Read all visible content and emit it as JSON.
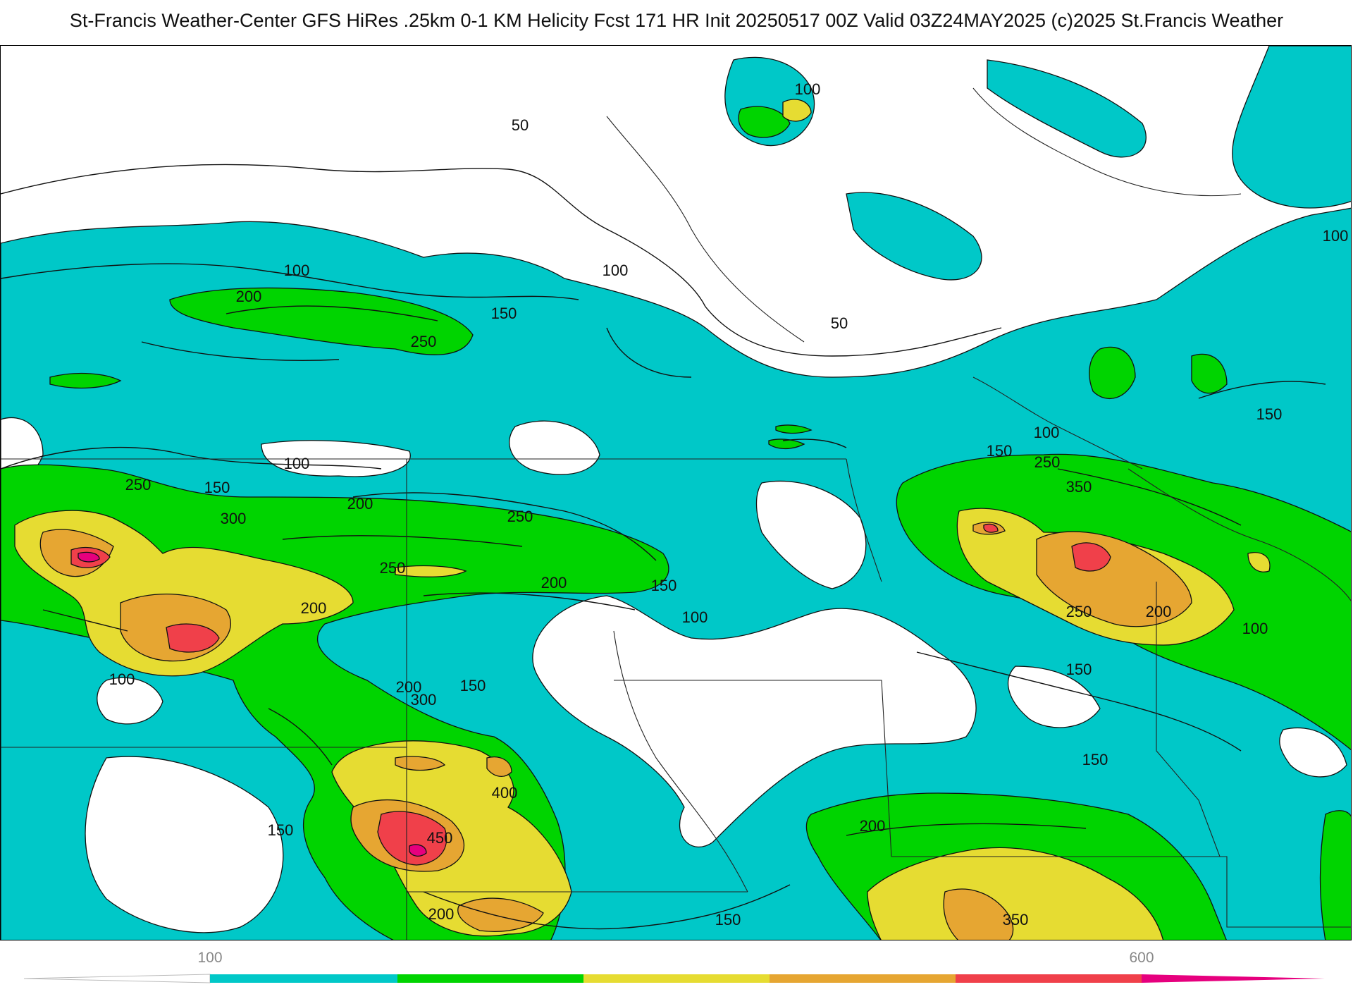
{
  "title": "St-Francis Weather-Center GFS HiRes .25km 0-1 KM Helicity Fcst 171 HR Init 20250517 00Z  Valid 03Z24MAY2025    (c)2025 St.Francis Weather",
  "colors": {
    "background": "#ffffff",
    "contour": "#111111",
    "band_100_150": "#00c8c8",
    "band_150_250": "#00d400",
    "band_250_350": "#e6dc32",
    "band_350_450": "#e6a632",
    "band_450_550": "#f0404a",
    "band_550_plus": "#e6007e"
  },
  "contour_labels": [
    "50",
    "100",
    "150",
    "200",
    "250",
    "300",
    "350",
    "400",
    "450"
  ],
  "legend": {
    "tick_labels": [
      "100",
      "600"
    ]
  }
}
